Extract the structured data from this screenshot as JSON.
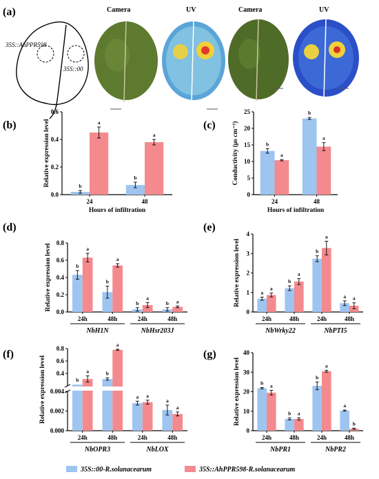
{
  "colors": {
    "blue": "#9ec4f0",
    "red": "#f48a8e"
  },
  "panel_a": {
    "label": "(a)",
    "leaf_labels": [
      "35S::AhPPR598",
      "35S::00"
    ],
    "photo_labels": [
      "Camera",
      "UV",
      "Camera",
      "UV"
    ]
  },
  "legend": {
    "entries": [
      "35S::00-R.solanacearum",
      "35S::AhPPR598-R.solanacearum"
    ]
  },
  "chart_data": [
    {
      "id": "b",
      "label": "(b)",
      "type": "bar",
      "ylabel": "Relative expression level",
      "xlabel": "Hours of infiltration",
      "ylim": [
        0,
        0.6
      ],
      "yticks": [
        "0.0",
        "0.2",
        "0.4",
        "0.6"
      ],
      "categories": [
        "24",
        "48"
      ],
      "series": [
        {
          "values": [
            0.02,
            0.07
          ],
          "errors": [
            0.01,
            0.02
          ],
          "letters": [
            "b",
            "b"
          ]
        },
        {
          "values": [
            0.45,
            0.38
          ],
          "errors": [
            0.04,
            0.02
          ],
          "letters": [
            "a",
            "a"
          ]
        }
      ]
    },
    {
      "id": "c",
      "label": "(c)",
      "type": "bar",
      "ylabel": "Conductivity (μs cm⁻¹)",
      "xlabel": "Hours of infiltration",
      "ylim": [
        0,
        25
      ],
      "yticks": [
        "0",
        "5",
        "10",
        "15",
        "20",
        "25"
      ],
      "categories": [
        "24",
        "48"
      ],
      "series": [
        {
          "values": [
            13.2,
            23.0
          ],
          "errors": [
            0.7,
            0.3
          ],
          "letters": [
            "b",
            "b"
          ]
        },
        {
          "values": [
            10.4,
            14.5
          ],
          "errors": [
            0.2,
            1.2
          ],
          "letters": [
            "a",
            "a"
          ]
        }
      ]
    },
    {
      "id": "d",
      "label": "(d)",
      "type": "bar",
      "ylabel": "Relative expression level",
      "ylim": [
        0,
        0.8
      ],
      "yticks": [
        "0.0",
        "0.2",
        "0.4",
        "0.6",
        "0.8"
      ],
      "categories": [
        "24h",
        "48h",
        "24h",
        "48h"
      ],
      "groups": [
        "NbH1N",
        "NbHsr203J"
      ],
      "series": [
        {
          "values": [
            0.43,
            0.23,
            0.03,
            0.03
          ],
          "errors": [
            0.05,
            0.07,
            0.02,
            0.02
          ],
          "letters": [
            "b",
            "b",
            "b",
            "b"
          ]
        },
        {
          "values": [
            0.63,
            0.54,
            0.08,
            0.06
          ],
          "errors": [
            0.05,
            0.02,
            0.03,
            0.01
          ],
          "letters": [
            "a",
            "a",
            "a",
            "a"
          ]
        }
      ]
    },
    {
      "id": "e",
      "label": "(e)",
      "type": "bar",
      "ylabel": "Relative expression level",
      "ylim": [
        0,
        4
      ],
      "yticks": [
        "0",
        "1",
        "2",
        "3",
        "4"
      ],
      "categories": [
        "24h",
        "48h",
        "24h",
        "48h"
      ],
      "groups": [
        "NbWrky22",
        "NbPTI5"
      ],
      "series": [
        {
          "values": [
            0.68,
            1.22,
            2.73,
            0.45
          ],
          "errors": [
            0.08,
            0.12,
            0.15,
            0.12
          ],
          "letters": [
            "a",
            "b",
            "b",
            "a"
          ]
        },
        {
          "values": [
            0.87,
            1.56,
            3.28,
            0.32
          ],
          "errors": [
            0.1,
            0.15,
            0.35,
            0.15
          ],
          "letters": [
            "a",
            "a",
            "a",
            "a"
          ]
        }
      ]
    },
    {
      "id": "f",
      "label": "(f)",
      "type": "bar",
      "ylabel": "Relative expression level",
      "axis_break": true,
      "upper_yticks": [
        "0.8",
        "0.6",
        "0.4"
      ],
      "lower_yticks": [
        "0.004",
        "0.002",
        "0.000"
      ],
      "categories": [
        "24h",
        "48h",
        "24h",
        "48h"
      ],
      "groups": [
        "NbOPR3",
        "NbLOX"
      ],
      "series": [
        {
          "values": [
            0.22,
            0.31,
            0.0028,
            0.0021
          ],
          "errors": [
            0.0,
            0.02,
            0.0002,
            0.0005
          ],
          "letters": [
            "b",
            "b",
            "a",
            "a"
          ]
        },
        {
          "values": [
            0.31,
            0.78,
            0.0029,
            0.0017
          ],
          "errors": [
            0.05,
            0.01,
            0.0002,
            0.0002
          ],
          "letters": [
            "a",
            "a",
            "a",
            "a"
          ]
        }
      ]
    },
    {
      "id": "g",
      "label": "(g)",
      "type": "bar",
      "ylabel": "Relative expression level",
      "ylim": [
        0,
        40
      ],
      "yticks": [
        "0",
        "10",
        "20",
        "30",
        "40"
      ],
      "categories": [
        "24h",
        "48h",
        "24h",
        "48h"
      ],
      "groups": [
        "NbPR1",
        "NbPR2"
      ],
      "series": [
        {
          "values": [
            21.8,
            6.0,
            23.0,
            10.3
          ],
          "errors": [
            0.3,
            0.5,
            2.0,
            0.3
          ],
          "letters": [
            "b",
            "b",
            "b",
            "a"
          ]
        },
        {
          "values": [
            19.5,
            6.0,
            30.5,
            1.0
          ],
          "errors": [
            1.2,
            0.6,
            0.5,
            0.3
          ],
          "letters": [
            "a",
            "a",
            "a",
            "b"
          ]
        }
      ]
    }
  ]
}
